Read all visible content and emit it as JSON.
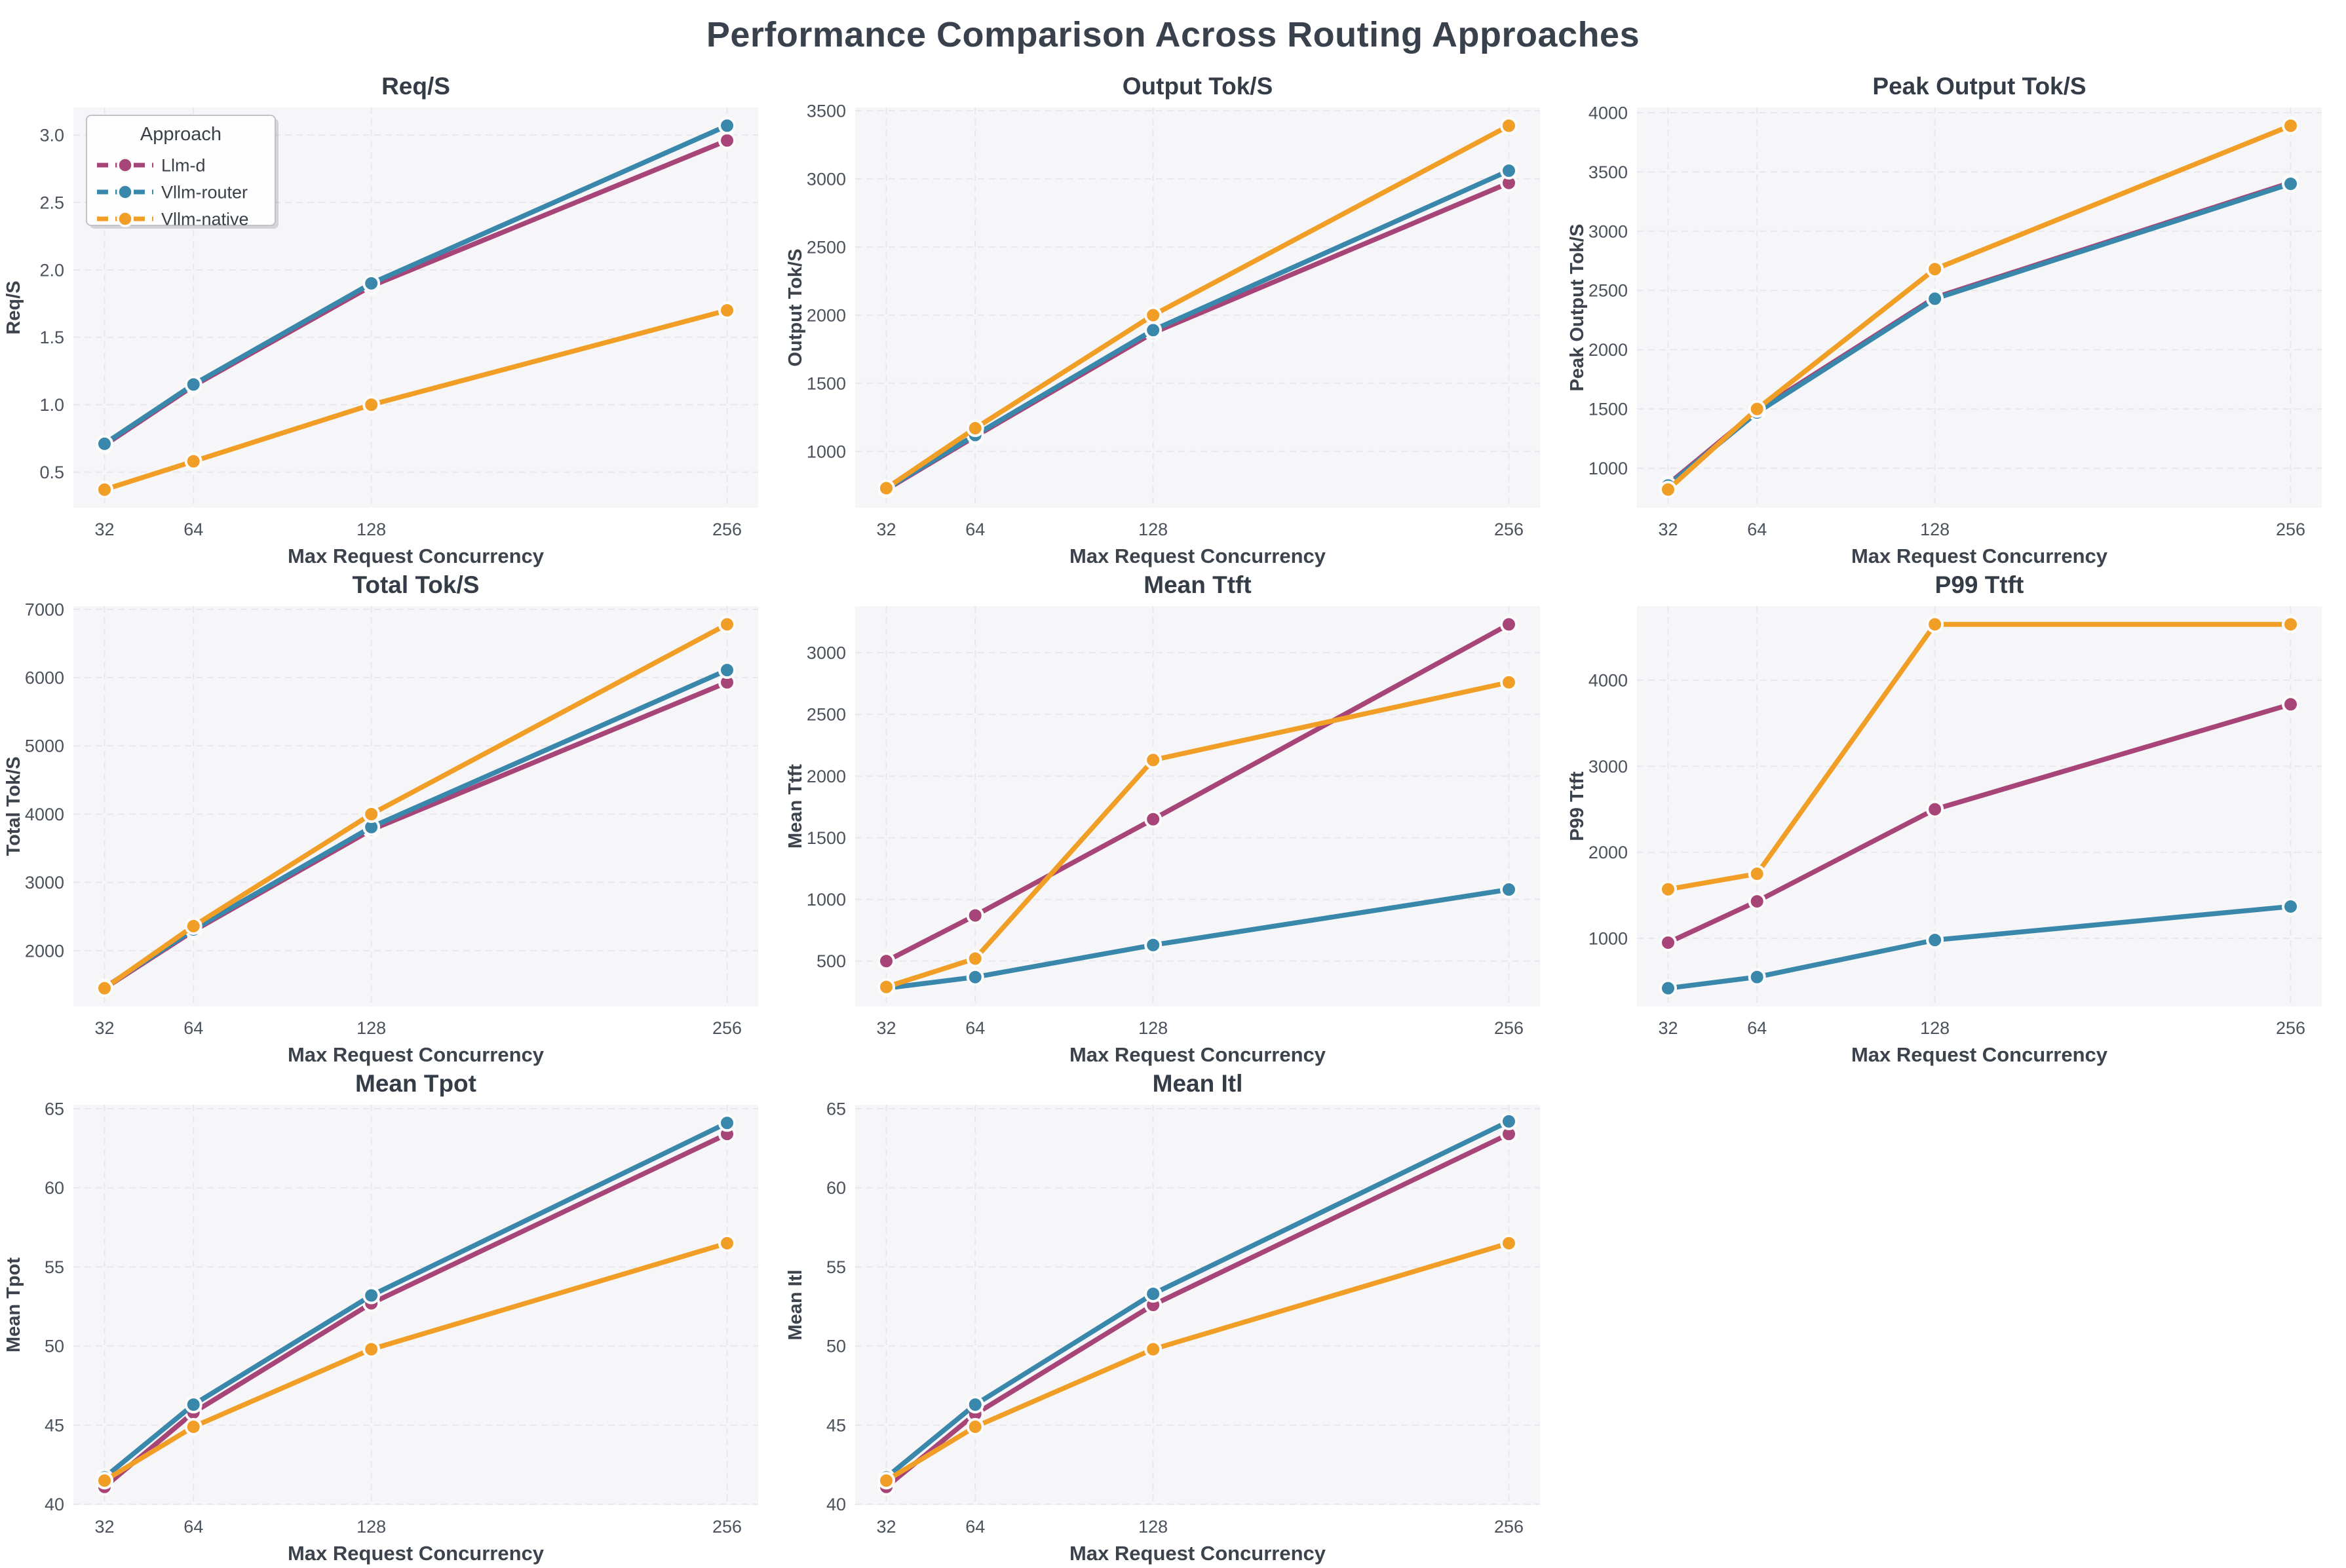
{
  "page_title": "Performance Comparison Across Routing Approaches",
  "xlabel": "Max Request Concurrency",
  "x_ticks": [
    32,
    64,
    128,
    256
  ],
  "colors": {
    "figure_bg": "#ffffff",
    "plot_bg": "#f6f6f8",
    "grid": "#e8e8ec",
    "title_text": "#39414c",
    "tick_text": "#4b525b",
    "label_text": "#3c434d"
  },
  "legend": {
    "title": "Approach",
    "entries": [
      {
        "label": "Llm-d",
        "color": "#a84578"
      },
      {
        "label": "Vllm-router",
        "color": "#3a87ac"
      },
      {
        "label": "Vllm-native",
        "color": "#f09e26"
      }
    ]
  },
  "chart_data": [
    {
      "type": "line",
      "title": "Req/S",
      "ylabel": "Req/S",
      "xlabel": "Max Request Concurrency",
      "x": [
        32,
        64,
        128,
        256
      ],
      "ylim": [
        0.235,
        3.205
      ],
      "yticks": [
        0.5,
        1.0,
        1.5,
        2.0,
        2.5,
        3.0
      ],
      "tick_decimals": 1,
      "show_legend": true,
      "grid": true,
      "legend_position": "upper-left",
      "series": [
        {
          "name": "Llm-d",
          "values": [
            0.7,
            1.14,
            1.88,
            2.96
          ]
        },
        {
          "name": "Vllm-router",
          "values": [
            0.71,
            1.15,
            1.9,
            3.07
          ]
        },
        {
          "name": "Vllm-native",
          "values": [
            0.37,
            0.58,
            1.0,
            1.7
          ]
        }
      ]
    },
    {
      "type": "line",
      "title": "Output Tok/S",
      "ylabel": "Output Tok/S",
      "xlabel": "Max Request Concurrency",
      "x": [
        32,
        64,
        128,
        256
      ],
      "ylim": [
        586,
        3524
      ],
      "yticks": [
        1000,
        1500,
        2000,
        2500,
        3000,
        3500
      ],
      "tick_decimals": 0,
      "show_legend": false,
      "grid": true,
      "series": [
        {
          "name": "Llm-d",
          "values": [
            720,
            1110,
            1870,
            2970
          ]
        },
        {
          "name": "Vllm-router",
          "values": [
            725,
            1120,
            1890,
            3060
          ]
        },
        {
          "name": "Vllm-native",
          "values": [
            730,
            1170,
            2000,
            3390
          ]
        }
      ]
    },
    {
      "type": "line",
      "title": "Peak Output Tok/S",
      "ylabel": "Peak Output Tok/S",
      "xlabel": "Max Request Concurrency",
      "x": [
        32,
        64,
        128,
        256
      ],
      "ylim": [
        666,
        4044
      ],
      "yticks": [
        1000,
        1500,
        2000,
        2500,
        3000,
        3500,
        4000
      ],
      "tick_decimals": 0,
      "show_legend": false,
      "grid": true,
      "series": [
        {
          "name": "Llm-d",
          "values": [
            865,
            1485,
            2440,
            3410
          ]
        },
        {
          "name": "Vllm-router",
          "values": [
            855,
            1470,
            2430,
            3400
          ]
        },
        {
          "name": "Vllm-native",
          "values": [
            820,
            1500,
            2680,
            3890
          ]
        }
      ]
    },
    {
      "type": "line",
      "title": "Total Tok/S",
      "ylabel": "Total Tok/S",
      "xlabel": "Max Request Concurrency",
      "x": [
        32,
        64,
        128,
        256
      ],
      "ylim": [
        1183,
        7047
      ],
      "yticks": [
        2000,
        3000,
        4000,
        5000,
        6000,
        7000
      ],
      "tick_decimals": 0,
      "show_legend": false,
      "grid": true,
      "series": [
        {
          "name": "Llm-d",
          "values": [
            1450,
            2290,
            3770,
            5930
          ]
        },
        {
          "name": "Vllm-router",
          "values": [
            1460,
            2310,
            3810,
            6110
          ]
        },
        {
          "name": "Vllm-native",
          "values": [
            1450,
            2360,
            4000,
            6780
          ]
        }
      ]
    },
    {
      "type": "line",
      "title": "Mean Ttft",
      "ylabel": "Mean Ttft",
      "xlabel": "Max Request Concurrency",
      "x": [
        32,
        64,
        128,
        256
      ],
      "ylim": [
        132,
        3378
      ],
      "yticks": [
        500,
        1000,
        1500,
        2000,
        2500,
        3000
      ],
      "tick_decimals": 0,
      "show_legend": false,
      "grid": true,
      "series": [
        {
          "name": "Llm-d",
          "values": [
            500,
            870,
            1650,
            3230
          ]
        },
        {
          "name": "Vllm-router",
          "values": [
            280,
            370,
            630,
            1080
          ]
        },
        {
          "name": "Vllm-native",
          "values": [
            290,
            520,
            2130,
            2760
          ]
        }
      ]
    },
    {
      "type": "line",
      "title": "P99 Ttft",
      "ylabel": "P99 Ttft",
      "xlabel": "Max Request Concurrency",
      "x": [
        32,
        64,
        128,
        256
      ],
      "ylim": [
        208,
        4862
      ],
      "yticks": [
        1000,
        2000,
        3000,
        4000
      ],
      "tick_decimals": 0,
      "show_legend": false,
      "grid": true,
      "series": [
        {
          "name": "Llm-d",
          "values": [
            950,
            1430,
            2500,
            3720
          ]
        },
        {
          "name": "Vllm-router",
          "values": [
            420,
            550,
            980,
            1370
          ]
        },
        {
          "name": "Vllm-native",
          "values": [
            1570,
            1750,
            4650,
            4650
          ]
        }
      ]
    },
    {
      "type": "line",
      "title": "Mean Tpot",
      "ylabel": "Mean Tpot",
      "xlabel": "Max Request Concurrency",
      "x": [
        32,
        64,
        128,
        256
      ],
      "ylim": [
        39.95,
        65.25
      ],
      "yticks": [
        40,
        45,
        50,
        55,
        60,
        65
      ],
      "tick_decimals": 0,
      "show_legend": false,
      "grid": true,
      "series": [
        {
          "name": "Llm-d",
          "values": [
            41.1,
            45.8,
            52.7,
            63.4
          ]
        },
        {
          "name": "Vllm-router",
          "values": [
            41.7,
            46.3,
            53.2,
            64.1
          ]
        },
        {
          "name": "Vllm-native",
          "values": [
            41.5,
            44.9,
            49.8,
            56.5
          ]
        }
      ]
    },
    {
      "type": "line",
      "title": "Mean Itl",
      "ylabel": "Mean Itl",
      "xlabel": "Max Request Concurrency",
      "x": [
        32,
        64,
        128,
        256
      ],
      "ylim": [
        39.95,
        65.25
      ],
      "yticks": [
        40,
        45,
        50,
        55,
        60,
        65
      ],
      "tick_decimals": 0,
      "show_legend": false,
      "grid": true,
      "series": [
        {
          "name": "Llm-d",
          "values": [
            41.1,
            45.7,
            52.6,
            63.4
          ]
        },
        {
          "name": "Vllm-router",
          "values": [
            41.7,
            46.3,
            53.3,
            64.2
          ]
        },
        {
          "name": "Vllm-native",
          "values": [
            41.5,
            44.9,
            49.8,
            56.5
          ]
        }
      ]
    }
  ]
}
